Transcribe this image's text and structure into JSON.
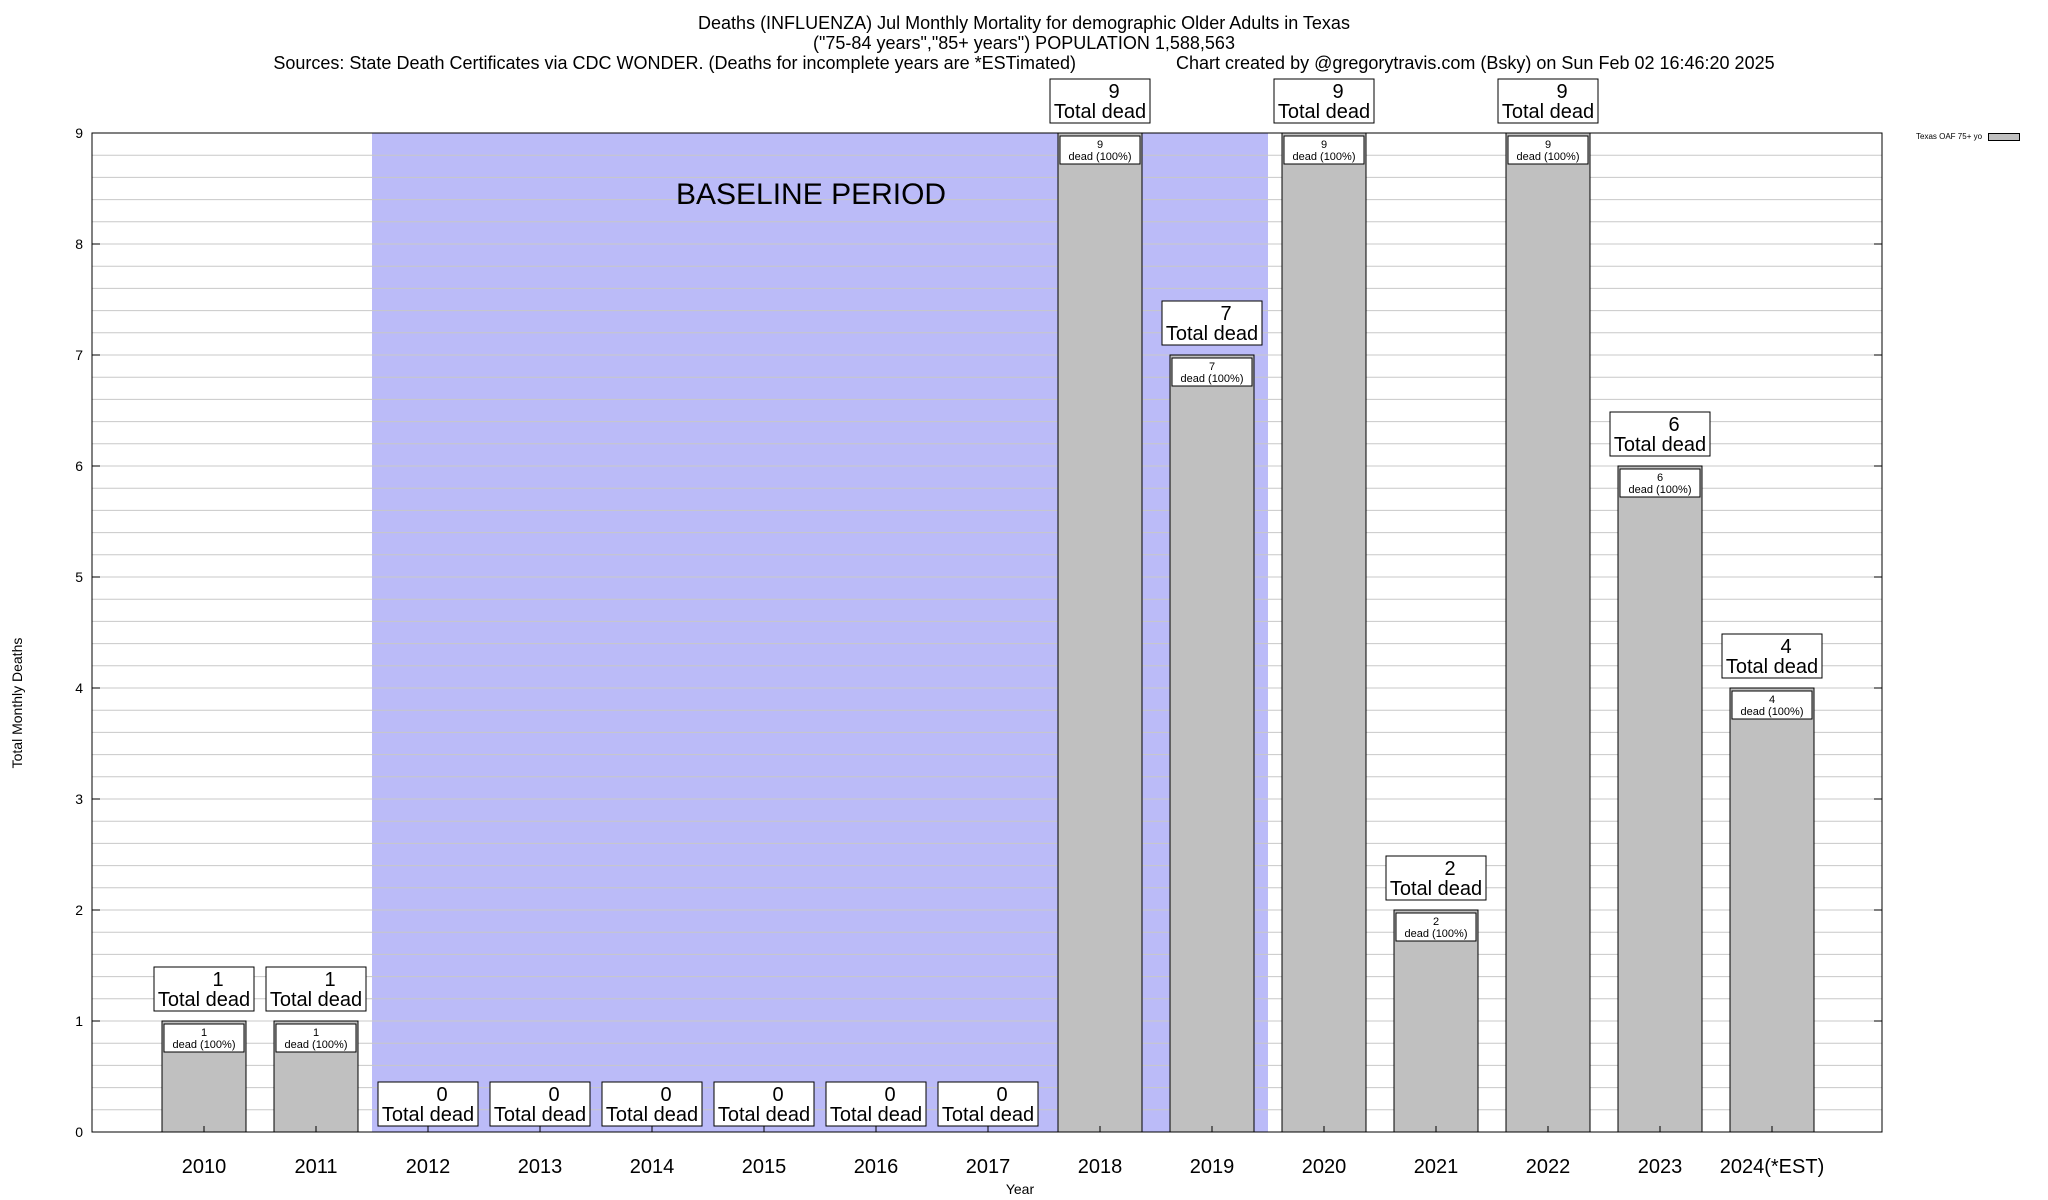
{
  "chart_data": {
    "type": "bar",
    "title": "Deaths (INFLUENZA) Jul Monthly Mortality for demographic Older Adults in Texas",
    "subtitle": "(\"75-84 years\",\"85+ years\") POPULATION 1,588,563",
    "sources": "Sources: State Death Certificates via CDC WONDER. (Deaths for incomplete years are *ESTimated)",
    "credit": "Chart created by @gregorytravis.com (Bsky) on Sun Feb 02 16:46:20 2025",
    "xlabel": "Year",
    "ylabel": "Total Monthly Deaths",
    "ylim": [
      0,
      9
    ],
    "yticks": [
      "0",
      "1",
      "2",
      "3",
      "4",
      "5",
      "6",
      "7",
      "8",
      "9"
    ],
    "categories": [
      "2010",
      "2011",
      "2012",
      "2013",
      "2014",
      "2015",
      "2016",
      "2017",
      "2018",
      "2019",
      "2020",
      "2021",
      "2022",
      "2023",
      "2024(*EST)"
    ],
    "series": [
      {
        "name": "Texas OAF 75+ yo",
        "values": [
          1,
          1,
          0,
          0,
          0,
          0,
          0,
          0,
          9,
          7,
          9,
          2,
          9,
          6,
          4
        ]
      }
    ],
    "total_labels": [
      "1",
      "1",
      "0",
      "0",
      "0",
      "0",
      "0",
      "0",
      "9",
      "7",
      "9",
      "2",
      "9",
      "6",
      "4"
    ],
    "total_label_suffix": "Total dead",
    "inner_labels": [
      "1",
      "1",
      "",
      "",
      "",
      "",
      "",
      "",
      "9",
      "7",
      "9",
      "2",
      "9",
      "6",
      "4"
    ],
    "inner_label_suffix": "dead (100%)",
    "baseline": {
      "label": "BASELINE PERIOD",
      "from_category": "2012",
      "to_category": "2019"
    },
    "grid": true,
    "legend_position": "top-right",
    "colors": {
      "bar": "#c0c0c0",
      "baseline": "#bbbbf8",
      "grid": "#c8c8c8"
    }
  }
}
